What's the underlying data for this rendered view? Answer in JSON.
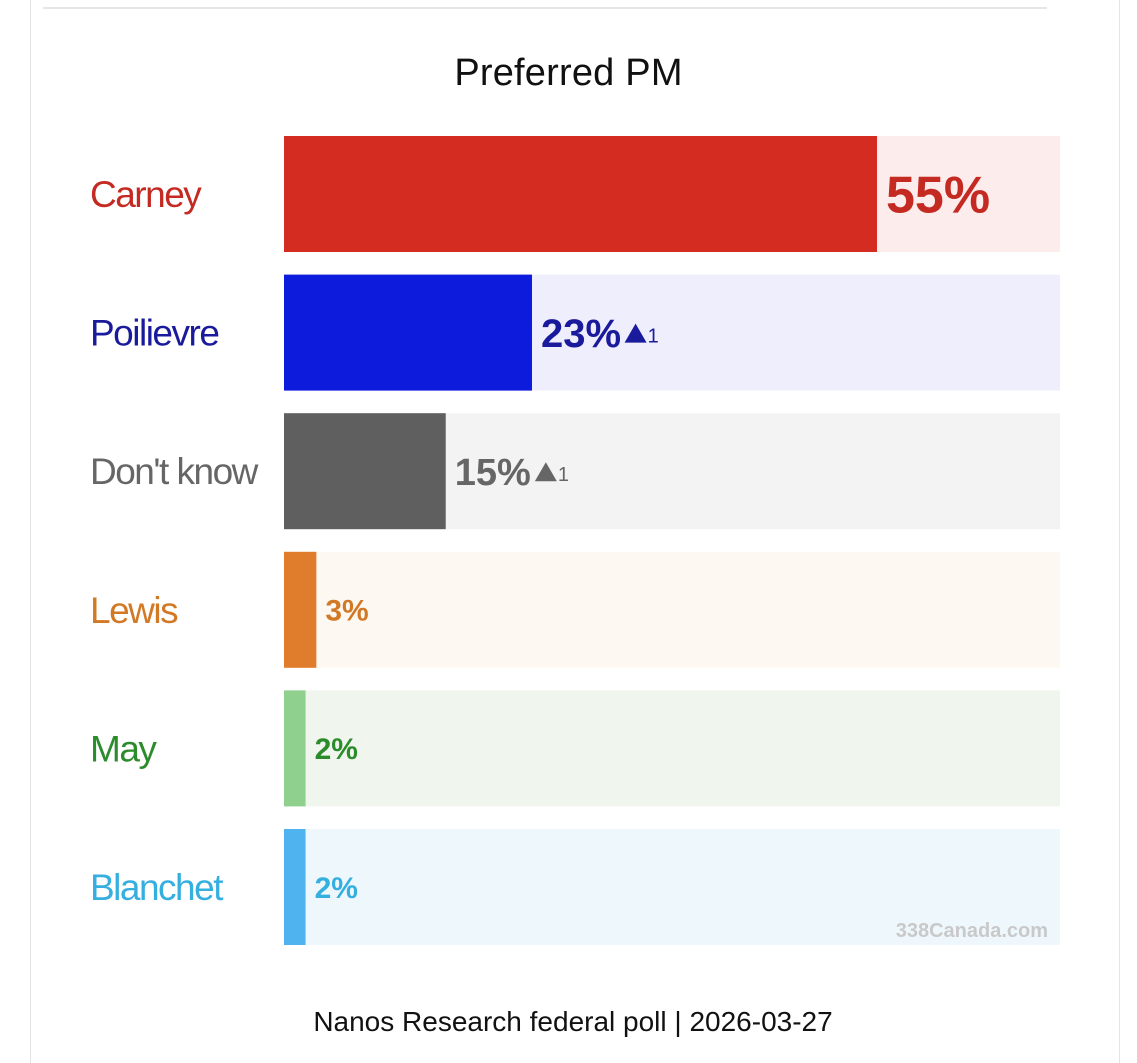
{
  "chart_data": {
    "type": "bar",
    "orientation": "horizontal",
    "title": "Preferred PM",
    "categories": [
      "Carney",
      "Poilievre",
      "Don't know",
      "Lewis",
      "May",
      "Blanchet"
    ],
    "values": [
      55,
      23,
      15,
      3,
      2,
      2
    ],
    "value_labels": [
      "55%",
      "23%",
      "15%",
      "3%",
      "2%",
      "2%"
    ],
    "changes": [
      "",
      "1",
      "1",
      "",
      "",
      ""
    ],
    "colors": [
      "#d42c20",
      "#0c1bdc",
      "#5f5f5f",
      "#e07d2d",
      "#8fd08f",
      "#4fb3f0"
    ],
    "track_colors": [
      "#fdecec",
      "#eeeefc",
      "#f3f3f3",
      "#fdf8f1",
      "#f0f6ee",
      "#eef8fc"
    ],
    "label_colors": [
      "#c42a22",
      "#1a1a9c",
      "#666666",
      "#d27926",
      "#2c8c2c",
      "#35aee0"
    ],
    "value_colors": [
      "#c42a22",
      "#1a1a9c",
      "#666666",
      "#d27926",
      "#2c8c2c",
      "#35aee0"
    ],
    "xlim": [
      0,
      72
    ],
    "watermark": "338Canada.com"
  },
  "footer": {
    "source": "Nanos Research federal poll | 2026-03-27"
  }
}
